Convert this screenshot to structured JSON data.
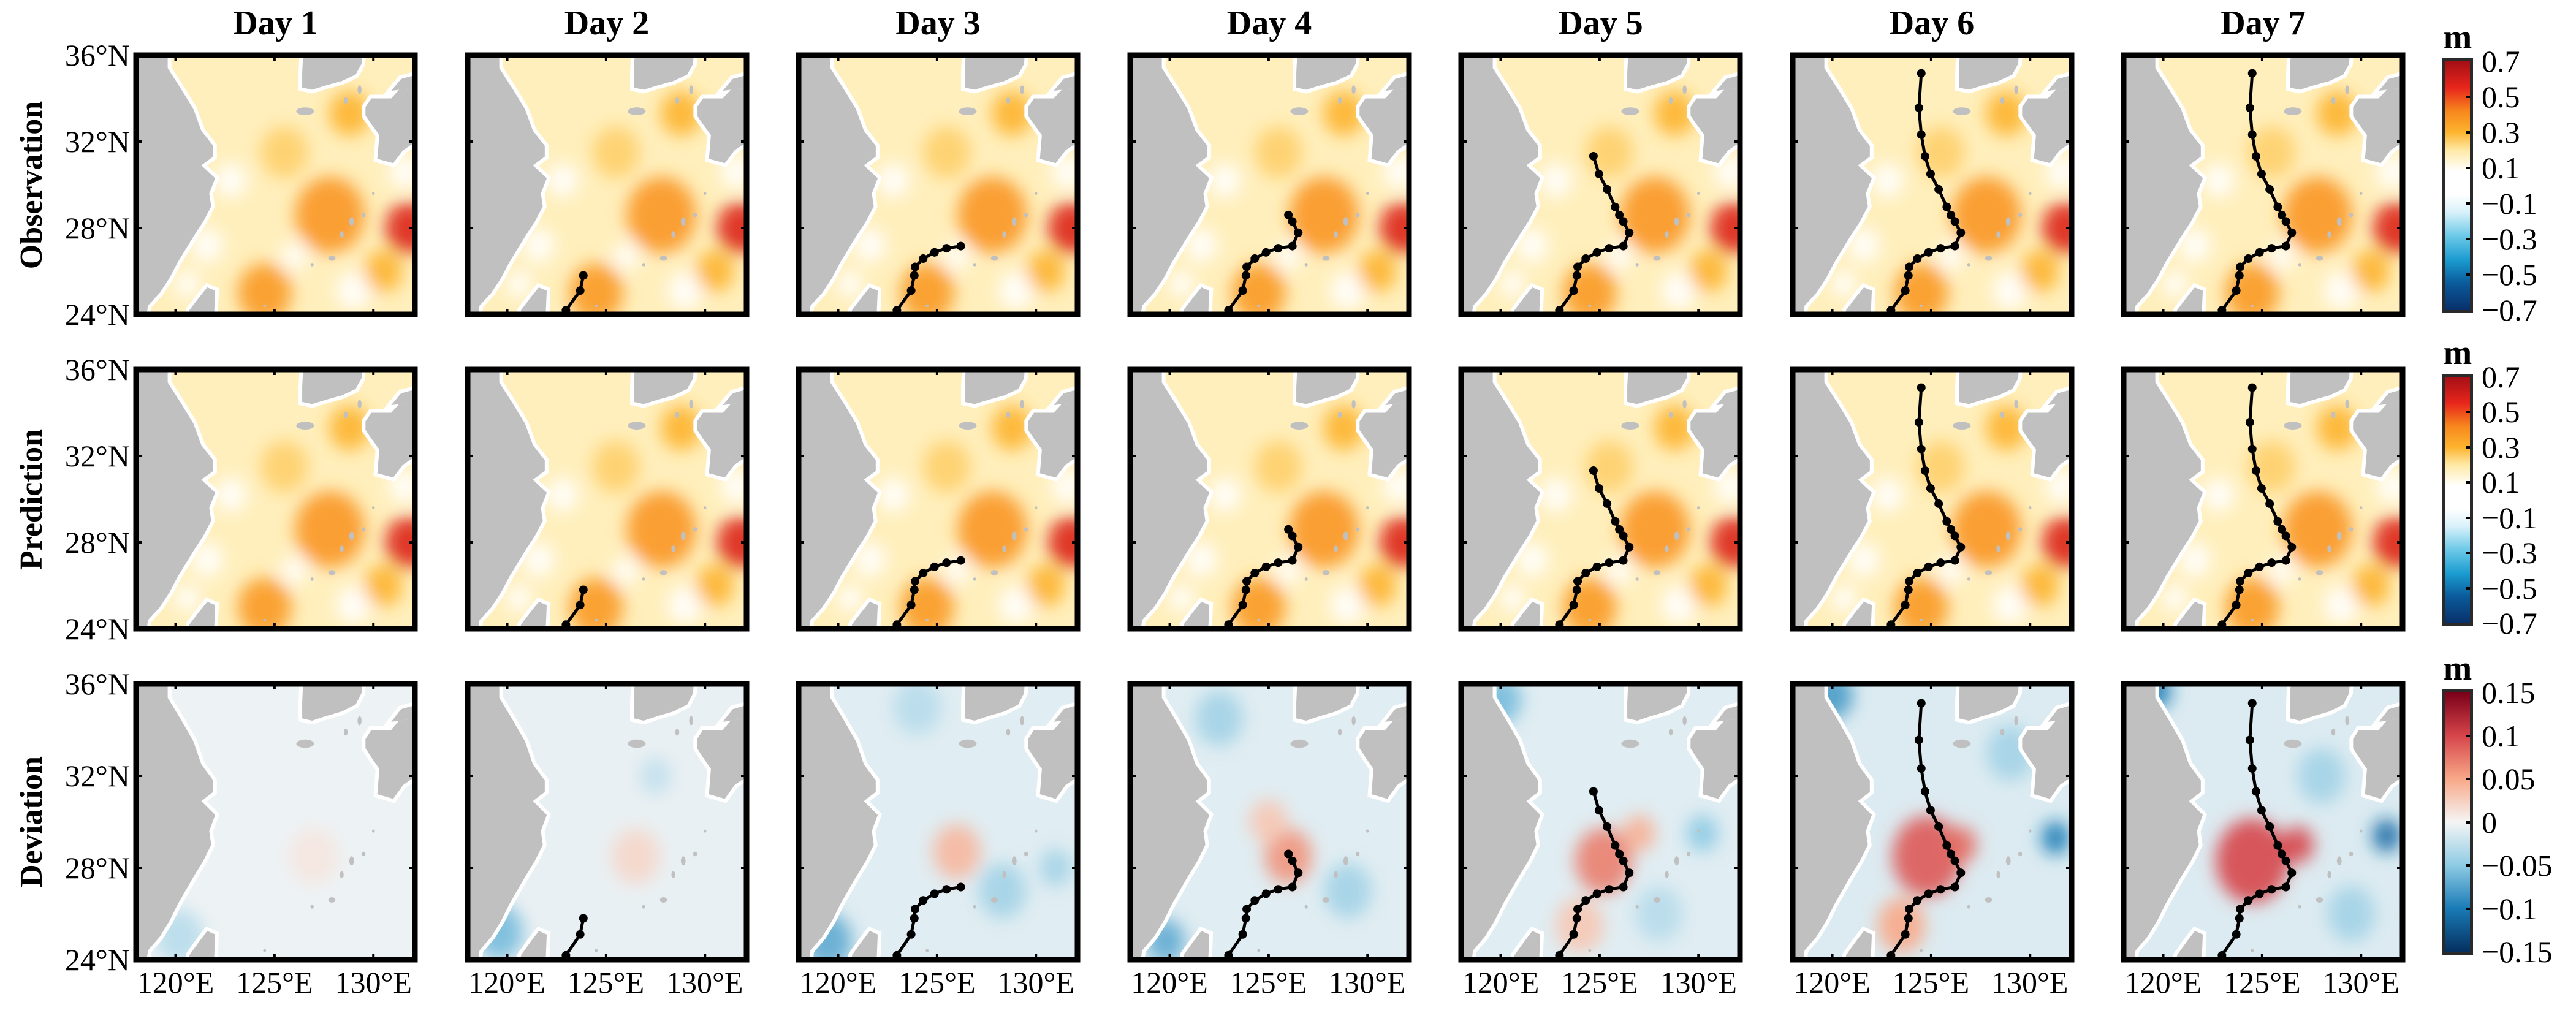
{
  "chart_data": {
    "type": "heatmap",
    "columns": [
      "Day 1",
      "Day 2",
      "Day 3",
      "Day 4",
      "Day 5",
      "Day 6",
      "Day 7"
    ],
    "rows": [
      "Observation",
      "Prediction",
      "Deviation"
    ],
    "lon_range": [
      118,
      132.1
    ],
    "lat_range": [
      24,
      36
    ],
    "xticks": [
      120,
      125,
      130
    ],
    "xtick_labels": [
      "120°E",
      "125°E",
      "130°E"
    ],
    "yticks": [
      36,
      32,
      28,
      24
    ],
    "ytick_labels": [
      "36°N",
      "32°N",
      "28°N",
      "24°N"
    ],
    "colorbars": [
      {
        "unit": "m",
        "range": [
          -0.7,
          0.7
        ],
        "labels": [
          "0.7",
          "0.5",
          "0.3",
          "0.1",
          "−0.1",
          "−0.3",
          "−0.5",
          "−0.7"
        ],
        "values": [
          0.7,
          0.5,
          0.3,
          0.1,
          -0.1,
          -0.3,
          -0.5,
          -0.7
        ],
        "colormap": [
          [
            -0.7,
            "#08306b"
          ],
          [
            -0.55,
            "#0b5a9a"
          ],
          [
            -0.42,
            "#1a9bd0"
          ],
          [
            -0.28,
            "#6ecae8"
          ],
          [
            -0.15,
            "#d8f1fa"
          ],
          [
            -0.05,
            "#ffffff"
          ],
          [
            0.08,
            "#ffffff"
          ],
          [
            0.2,
            "#ffe9a6"
          ],
          [
            0.3,
            "#fdb42f"
          ],
          [
            0.42,
            "#f7871d"
          ],
          [
            0.55,
            "#e8261c"
          ],
          [
            0.7,
            "#a50f15"
          ]
        ]
      },
      {
        "unit": "m",
        "range": [
          -0.7,
          0.7
        ],
        "labels": [
          "0.7",
          "0.5",
          "0.3",
          "0.1",
          "−0.1",
          "−0.3",
          "−0.5",
          "−0.7"
        ],
        "values": [
          0.7,
          0.5,
          0.3,
          0.1,
          -0.1,
          -0.3,
          -0.5,
          -0.7
        ],
        "colormap": [
          [
            -0.7,
            "#08306b"
          ],
          [
            -0.55,
            "#0b5a9a"
          ],
          [
            -0.42,
            "#1a9bd0"
          ],
          [
            -0.28,
            "#6ecae8"
          ],
          [
            -0.15,
            "#d8f1fa"
          ],
          [
            -0.05,
            "#ffffff"
          ],
          [
            0.08,
            "#ffffff"
          ],
          [
            0.2,
            "#ffe9a6"
          ],
          [
            0.3,
            "#fdb42f"
          ],
          [
            0.42,
            "#f7871d"
          ],
          [
            0.55,
            "#e8261c"
          ],
          [
            0.7,
            "#a50f15"
          ]
        ]
      },
      {
        "unit": "m",
        "range": [
          -0.15,
          0.15
        ],
        "labels": [
          "0.15",
          "0.1",
          "0.05",
          "0",
          "−0.05",
          "−0.1",
          "−0.15"
        ],
        "values": [
          0.15,
          0.1,
          0.05,
          0,
          -0.05,
          -0.1,
          -0.15
        ],
        "colormap": [
          [
            -0.15,
            "#053061"
          ],
          [
            -0.1,
            "#1a7bb6"
          ],
          [
            -0.05,
            "#8ecbe4"
          ],
          [
            0,
            "#f5f5f5"
          ],
          [
            0.05,
            "#f8a888"
          ],
          [
            0.1,
            "#d6454a"
          ],
          [
            0.15,
            "#7a0019"
          ]
        ]
      }
    ],
    "land_color": "#c0c0c0",
    "track_color": "#000000",
    "track": [
      [
        122.97,
        24.19
      ],
      [
        123.69,
        25.1
      ],
      [
        123.85,
        25.8
      ],
      [
        123.89,
        26.2
      ],
      [
        124.3,
        26.58
      ],
      [
        124.87,
        26.87
      ],
      [
        125.48,
        27.06
      ],
      [
        126.2,
        27.16
      ],
      [
        126.5,
        27.78
      ],
      [
        126.2,
        28.3
      ],
      [
        126.0,
        28.6
      ],
      [
        125.79,
        28.97
      ],
      [
        125.38,
        29.79
      ],
      [
        124.97,
        30.5
      ],
      [
        124.69,
        31.32
      ],
      [
        124.5,
        32.32
      ],
      [
        124.38,
        33.56
      ],
      [
        124.5,
        35.16
      ]
    ],
    "track_points_per_day": [
      0,
      3,
      8,
      11,
      15,
      18,
      18
    ],
    "ssh_field": {
      "base": 0.17,
      "features": [
        {
          "lon": 125.5,
          "lat": 31.5,
          "r": 1.5,
          "v": 0.25
        },
        {
          "lon": 128.8,
          "lat": 33.3,
          "r": 1.3,
          "v": 0.3
        },
        {
          "lon": 127.8,
          "lat": 28.6,
          "r": 2.2,
          "v": 0.38
        },
        {
          "lon": 131.8,
          "lat": 28.0,
          "r": 1.5,
          "v": 0.58
        },
        {
          "lon": 124.5,
          "lat": 25.0,
          "r": 1.7,
          "v": 0.37
        },
        {
          "lon": 129.0,
          "lat": 25.1,
          "r": 1.1,
          "v": 0.05
        },
        {
          "lon": 126.0,
          "lat": 26.7,
          "r": 0.8,
          "v": 0.08
        },
        {
          "lon": 121.6,
          "lat": 27.2,
          "r": 1.0,
          "v": 0.04
        },
        {
          "lon": 122.8,
          "lat": 30.2,
          "r": 1.0,
          "v": 0.06
        },
        {
          "lon": 120.6,
          "lat": 25.4,
          "r": 0.8,
          "v": 0.05
        },
        {
          "lon": 131.6,
          "lat": 30.6,
          "r": 1.0,
          "v": 0.05
        },
        {
          "lon": 130.5,
          "lat": 26.0,
          "r": 1.2,
          "v": 0.3
        }
      ]
    },
    "deviation_fields": [
      {
        "base": -0.004,
        "features": [
          {
            "lon": 120.2,
            "lat": 25.0,
            "r": 1.5,
            "v": -0.03
          },
          {
            "lon": 127,
            "lat": 28.5,
            "r": 1.5,
            "v": 0.01
          }
        ]
      },
      {
        "base": -0.006,
        "features": [
          {
            "lon": 119.6,
            "lat": 25.2,
            "r": 1.5,
            "v": -0.06
          },
          {
            "lon": 126.5,
            "lat": 28.5,
            "r": 1.5,
            "v": 0.02
          },
          {
            "lon": 127.5,
            "lat": 32.0,
            "r": 1.0,
            "v": -0.025
          }
        ]
      },
      {
        "base": -0.01,
        "features": [
          {
            "lon": 119.5,
            "lat": 24.8,
            "r": 1.5,
            "v": -0.07
          },
          {
            "lon": 126.0,
            "lat": 28.7,
            "r": 1.5,
            "v": 0.04
          },
          {
            "lon": 128.3,
            "lat": 27.0,
            "r": 1.5,
            "v": -0.04
          },
          {
            "lon": 124.0,
            "lat": 35.0,
            "r": 1.5,
            "v": -0.03
          },
          {
            "lon": 131.0,
            "lat": 28.0,
            "r": 1.0,
            "v": -0.04
          }
        ]
      },
      {
        "base": -0.01,
        "features": [
          {
            "lon": 126.0,
            "lat": 28.5,
            "r": 1.5,
            "v": 0.06
          },
          {
            "lon": 125.0,
            "lat": 30.0,
            "r": 1.2,
            "v": 0.03
          },
          {
            "lon": 119.8,
            "lat": 24.8,
            "r": 1.2,
            "v": -0.07
          },
          {
            "lon": 129.0,
            "lat": 27.0,
            "r": 1.5,
            "v": -0.04
          },
          {
            "lon": 122.5,
            "lat": 34.5,
            "r": 1.5,
            "v": -0.04
          }
        ]
      },
      {
        "base": -0.01,
        "features": [
          {
            "lon": 125.2,
            "lat": 28.3,
            "r": 1.8,
            "v": 0.07
          },
          {
            "lon": 127.0,
            "lat": 29.5,
            "r": 1.0,
            "v": 0.045
          },
          {
            "lon": 120.0,
            "lat": 35.3,
            "r": 1.3,
            "v": -0.06
          },
          {
            "lon": 124.0,
            "lat": 25.5,
            "r": 1.5,
            "v": 0.03
          },
          {
            "lon": 130.2,
            "lat": 29.5,
            "r": 1.0,
            "v": -0.05
          },
          {
            "lon": 128.0,
            "lat": 26.0,
            "r": 1.5,
            "v": -0.03
          }
        ]
      },
      {
        "base": -0.012,
        "features": [
          {
            "lon": 124.8,
            "lat": 28.5,
            "r": 2.2,
            "v": 0.09
          },
          {
            "lon": 126.5,
            "lat": 29.0,
            "r": 1.0,
            "v": 0.08
          },
          {
            "lon": 120.0,
            "lat": 35.5,
            "r": 1.3,
            "v": -0.08
          },
          {
            "lon": 131.3,
            "lat": 29.3,
            "r": 0.9,
            "v": -0.1
          },
          {
            "lon": 123.5,
            "lat": 25.5,
            "r": 1.5,
            "v": 0.05
          },
          {
            "lon": 129.0,
            "lat": 33.0,
            "r": 1.5,
            "v": -0.04
          }
        ]
      },
      {
        "base": -0.012,
        "features": [
          {
            "lon": 124.5,
            "lat": 28.3,
            "r": 2.3,
            "v": 0.1
          },
          {
            "lon": 126.8,
            "lat": 29.0,
            "r": 1.0,
            "v": 0.1
          },
          {
            "lon": 119.6,
            "lat": 35.7,
            "r": 1.0,
            "v": -0.1
          },
          {
            "lon": 131.3,
            "lat": 29.4,
            "r": 0.9,
            "v": -0.11
          },
          {
            "lon": 128.0,
            "lat": 32.0,
            "r": 1.5,
            "v": -0.04
          },
          {
            "lon": 129.5,
            "lat": 26.0,
            "r": 1.5,
            "v": -0.04
          }
        ]
      }
    ]
  }
}
